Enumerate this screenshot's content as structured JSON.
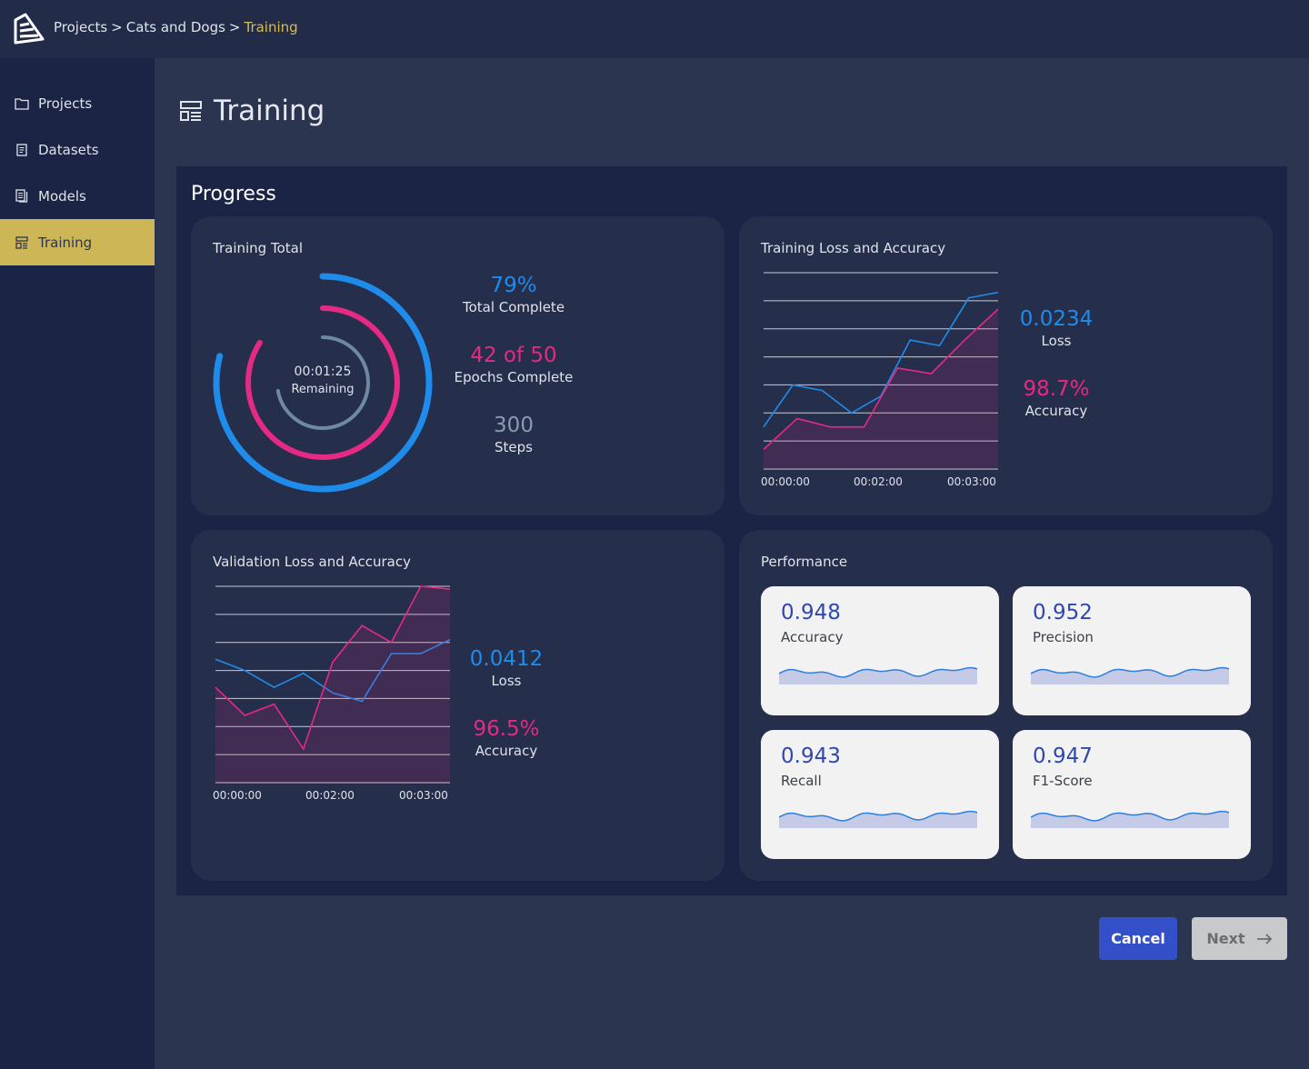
{
  "breadcrumb": {
    "item1": "Projects",
    "sep1": ">",
    "item2": "Cats and Dogs",
    "sep2": ">",
    "current": "Training"
  },
  "sidebar": {
    "items": [
      {
        "label": "Projects",
        "icon": "folder-icon"
      },
      {
        "label": "Datasets",
        "icon": "document-icon"
      },
      {
        "label": "Models",
        "icon": "documents-icon"
      },
      {
        "label": "Training",
        "icon": "dashboard-icon",
        "active": true
      }
    ]
  },
  "page": {
    "title": "Training"
  },
  "progress": {
    "title": "Progress",
    "training_total": {
      "title": "Training Total",
      "timer": "00:01:25",
      "timer_label": "Remaining",
      "total_value": "79%",
      "total_label": "Total Complete",
      "total_fraction": 0.79,
      "epochs_value": "42 of 50",
      "epochs_label": "Epochs Complete",
      "epochs_fraction": 0.84,
      "steps_value": "300",
      "steps_label": "Steps",
      "remaining_fraction": 0.72
    },
    "training_chart": {
      "title": "Training Loss and Accuracy",
      "loss_value": "0.0234",
      "loss_label": "Loss",
      "acc_value": "98.7%",
      "acc_label": "Accuracy"
    },
    "validation_chart": {
      "title": "Validation Loss and Accuracy",
      "loss_value": "0.0412",
      "loss_label": "Loss",
      "acc_value": "96.5%",
      "acc_label": "Accuracy"
    },
    "performance": {
      "title": "Performance",
      "metrics": [
        {
          "value": "0.948",
          "label": "Accuracy"
        },
        {
          "value": "0.952",
          "label": "Precision"
        },
        {
          "value": "0.943",
          "label": "Recall"
        },
        {
          "value": "0.947",
          "label": "F1-Score"
        }
      ]
    }
  },
  "buttons": {
    "cancel": "Cancel",
    "next": "Next"
  },
  "colors": {
    "blue": "#1f8ceb",
    "pink": "#e52a83",
    "gray": "#6e8aa3",
    "gold": "#cdb656",
    "metric": "#3047b0"
  },
  "chart_data": [
    {
      "type": "line",
      "title": "Training Loss and Accuracy",
      "x_ticks": [
        "00:00:00",
        "00:02:00",
        "00:03:00"
      ],
      "ylim": [
        0,
        7
      ],
      "series": [
        {
          "values": [
            1.5,
            3.0,
            2.8,
            2.0,
            2.6,
            4.6,
            4.4,
            6.1,
            6.3
          ]
        },
        {
          "values": [
            0.7,
            1.8,
            1.5,
            1.5,
            3.6,
            3.4,
            4.6,
            5.7
          ]
        }
      ]
    },
    {
      "type": "line",
      "title": "Validation Loss and Accuracy",
      "x_ticks": [
        "00:00:00",
        "00:02:00",
        "00:03:00"
      ],
      "ylim": [
        0,
        7
      ],
      "series": [
        {
          "values": [
            4.4,
            4.0,
            3.4,
            3.9,
            3.2,
            2.9,
            4.6,
            4.6,
            5.1
          ]
        },
        {
          "values": [
            3.4,
            2.4,
            2.8,
            1.2,
            4.3,
            5.6,
            5.0,
            7.0,
            6.9
          ]
        }
      ]
    }
  ]
}
